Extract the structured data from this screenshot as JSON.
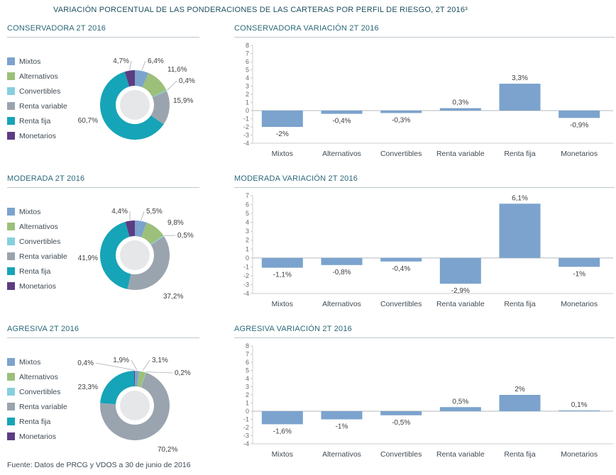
{
  "page": {
    "title": "VARIACIÓN PORCENTUAL DE LAS PONDERACIONES DE LAS CARTERAS POR PERFIL DE RIESGO, 2T 2016³",
    "footer": "Fuente: Datos de PRCG y VDOS a 30 de junio de 2016"
  },
  "colors": {
    "title_text": "#1e4f5f",
    "header_text": "#2a6879",
    "bar_fill": "#7ba3cd",
    "category_colors": [
      "#7ba3cd",
      "#9cc07a",
      "#85cfdf",
      "#9aa4ae",
      "#16a4b8",
      "#5d3c82"
    ],
    "donut_center": "#e6e7e8"
  },
  "categories": [
    "Mixtos",
    "Alternativos",
    "Convertibles",
    "Renta variable",
    "Renta fija",
    "Monetarios"
  ],
  "chart_data": [
    {
      "id": "donut-conservadora",
      "type": "pie",
      "title": "CONSERVADORA 2T 2016",
      "labels": [
        "Mixtos",
        "Alternativos",
        "Convertibles",
        "Renta variable",
        "Renta fija",
        "Monetarios"
      ],
      "values": [
        6.4,
        11.6,
        0.4,
        15.9,
        60.7,
        4.7
      ],
      "value_labels": [
        "6,4%",
        "11,6%",
        "0,4%",
        "15,9%",
        "60,7%",
        "4,7%"
      ],
      "legend_position": "left",
      "donut": true
    },
    {
      "id": "bars-conservadora",
      "type": "bar",
      "title": "CONSERVADORA VARIACIÓN 2T 2016",
      "categories": [
        "Mixtos",
        "Alternativos",
        "Convertibles",
        "Renta variable",
        "Renta fija",
        "Monetarios"
      ],
      "values": [
        -2,
        -0.4,
        -0.3,
        0.3,
        3.3,
        -0.9
      ],
      "value_labels": [
        "-2%",
        "-0,4%",
        "-0,3%",
        "0,3%",
        "3,3%",
        "-0,9%"
      ],
      "ylim": [
        -4,
        8
      ],
      "yticks": [
        8,
        7,
        6,
        5,
        4,
        3,
        2,
        1,
        0,
        -1,
        -2,
        -3,
        -4
      ],
      "grid": false
    },
    {
      "id": "donut-moderada",
      "type": "pie",
      "title": "MODERADA 2T 2016",
      "labels": [
        "Mixtos",
        "Alternativos",
        "Convertibles",
        "Renta variable",
        "Renta fija",
        "Monetarios"
      ],
      "values": [
        5.5,
        9.8,
        0.5,
        37.2,
        41.9,
        4.4
      ],
      "value_labels": [
        "5,5%",
        "9,8%",
        "0,5%",
        "37,2%",
        "41,9%",
        "4,4%"
      ],
      "legend_position": "left",
      "donut": true
    },
    {
      "id": "bars-moderada",
      "type": "bar",
      "title": "MODERADA VARIACIÓN 2T 2016",
      "categories": [
        "Mixtos",
        "Alternativos",
        "Convertibles",
        "Renta variable",
        "Renta fija",
        "Monetarios"
      ],
      "values": [
        -1.1,
        -0.8,
        -0.4,
        -2.9,
        6.1,
        -1
      ],
      "value_labels": [
        "-1,1%",
        "-0,8%",
        "-0,4%",
        "-2,9%",
        "6,1%",
        "-1%"
      ],
      "ylim": [
        -4,
        7
      ],
      "yticks": [
        7,
        6,
        5,
        4,
        3,
        2,
        1,
        0,
        -1,
        -2,
        -3,
        -4
      ],
      "grid": false
    },
    {
      "id": "donut-agresiva",
      "type": "pie",
      "title": "AGRESIVA 2T 2016",
      "labels": [
        "Mixtos",
        "Alternativos",
        "Convertibles",
        "Renta variable",
        "Renta fija",
        "Monetarios"
      ],
      "values": [
        1.9,
        3.1,
        0.2,
        70.2,
        23.3,
        0.4
      ],
      "value_labels": [
        "1,9%",
        "3,1%",
        "0,2%",
        "70,2%",
        "23,3%",
        "0,4%"
      ],
      "legend_position": "left",
      "donut": true
    },
    {
      "id": "bars-agresiva",
      "type": "bar",
      "title": "AGRESIVA VARIACIÓN 2T 2016",
      "categories": [
        "Mixtos",
        "Alternativos",
        "Convertibles",
        "Renta variable",
        "Renta fija",
        "Monetarios"
      ],
      "values": [
        -1.6,
        -1,
        -0.5,
        0.5,
        2,
        0.1
      ],
      "value_labels": [
        "-1,6%",
        "-1%",
        "-0,5%",
        "0,5%",
        "2%",
        "0,1%"
      ],
      "ylim": [
        -4,
        8
      ],
      "yticks": [
        8,
        7,
        6,
        5,
        4,
        3,
        2,
        1,
        0,
        -1,
        -2,
        -3,
        -4
      ],
      "grid": false
    }
  ]
}
